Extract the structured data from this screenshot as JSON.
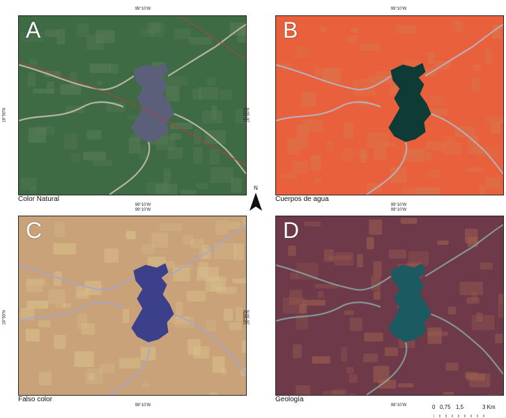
{
  "panels": [
    {
      "letter": "A",
      "caption": "Color Natural",
      "top_lon": "99°10'W",
      "bottom_lon": "99°10'W",
      "lat": "16°50'N"
    },
    {
      "letter": "B",
      "caption": "Cuerpos de agua",
      "top_lon": "99°10'W",
      "bottom_lon": "99°10'W",
      "lat": "16°50'N"
    },
    {
      "letter": "C",
      "caption": "Falso color",
      "top_lon": "99°10'W",
      "bottom_lon": "99°10'W",
      "lat": "16°50'N"
    },
    {
      "letter": "D",
      "caption": "Geología",
      "top_lon": "99°10'W",
      "bottom_lon": "99°10'W",
      "lat": "16°50'N"
    }
  ],
  "north_arrow": {
    "label": "N"
  },
  "scale_bar": {
    "labels": [
      "0",
      "0,75",
      "1,5",
      "3 Km"
    ]
  },
  "colors": {
    "A": {
      "land": "#3f6b44",
      "land2": "#5a7d58",
      "water": "#5b5f7a",
      "river": "#c8c2b0"
    },
    "B": {
      "land": "#e8613c",
      "land2": "#d8764e",
      "water": "#0f3b36",
      "river": "#b4b8c8"
    },
    "C": {
      "land": "#c9a27a",
      "land2": "#d9c08a",
      "water": "#3c3f8a",
      "river": "#a8a6c8"
    },
    "D": {
      "land": "#6e3a4a",
      "land2": "#a0614e",
      "water": "#1c5a62",
      "river": "#8aa6a0"
    }
  }
}
